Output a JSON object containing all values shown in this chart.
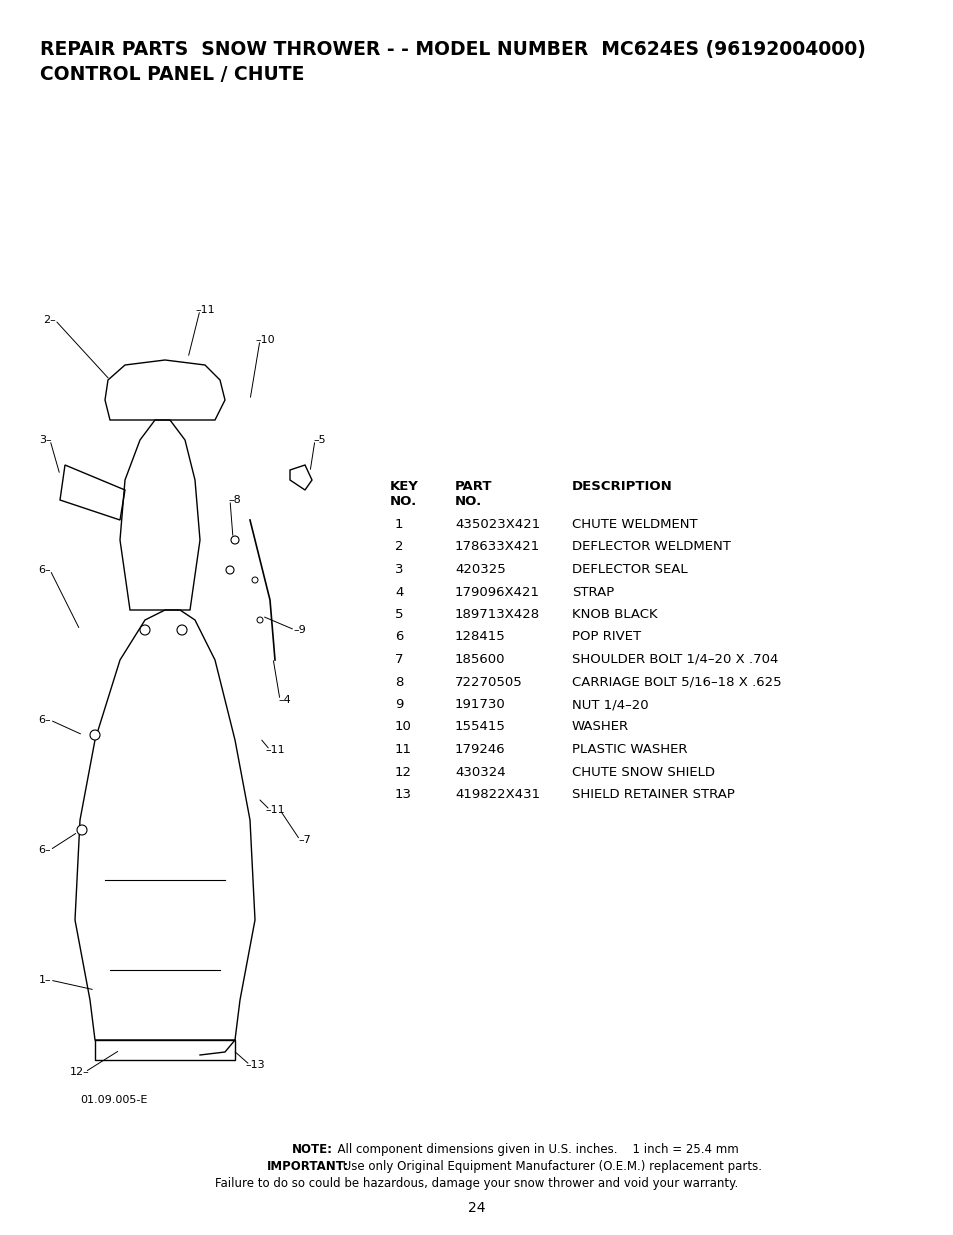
{
  "title_line1": "REPAIR PARTS  SNOW THROWER - - MODEL NUMBER  MC624ES (96192004000)",
  "title_line2": "CONTROL PANEL / CHUTE",
  "table_data": [
    [
      "1",
      "435023X421",
      "CHUTE WELDMENT"
    ],
    [
      "2",
      "178633X421",
      "DEFLECTOR WELDMENT"
    ],
    [
      "3",
      "420325",
      "DEFLECTOR SEAL"
    ],
    [
      "4",
      "179096X421",
      "STRAP"
    ],
    [
      "5",
      "189713X428",
      "KNOB BLACK"
    ],
    [
      "6",
      "128415",
      "POP RIVET"
    ],
    [
      "7",
      "185600",
      "SHOULDER BOLT 1/4–20 X .704"
    ],
    [
      "8",
      "72270505",
      "CARRIAGE BOLT 5/16–18 X .625"
    ],
    [
      "9",
      "191730",
      "NUT 1/4–20"
    ],
    [
      "10",
      "155415",
      "WASHER"
    ],
    [
      "11",
      "179246",
      "PLASTIC WASHER"
    ],
    [
      "12",
      "430324",
      "CHUTE SNOW SHIELD"
    ],
    [
      "13",
      "419822X431",
      "SHIELD RETAINER STRAP"
    ]
  ],
  "diagram_label": "01.09.005-E",
  "note_line1_bold": "NOTE:",
  "note_line1_rest": "  All component dimensions given in U.S. inches.    1 inch = 25.4 mm",
  "note_line2_bold": "IMPORTANT:",
  "note_line2_rest": " Use only Original Equipment Manufacturer (O.E.M.) replacement parts.",
  "note_line3": "Failure to do so could be hazardous, damage your snow thrower and void your warranty.",
  "page_number": "24",
  "bg_color": "#ffffff",
  "text_color": "#000000",
  "title_fontsize": 13.5,
  "table_fontsize": 9.5,
  "note_fontsize": 8.5
}
